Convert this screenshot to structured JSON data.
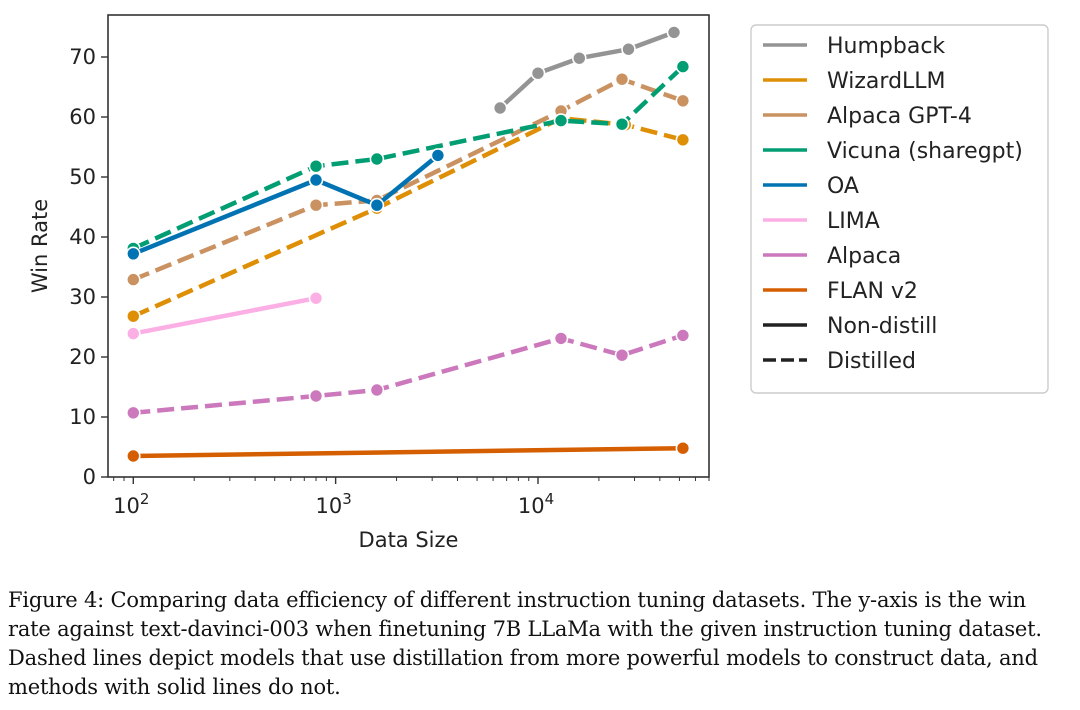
{
  "chart_data": {
    "type": "line",
    "xlabel": "Data Size",
    "ylabel": "Win Rate",
    "xscale": "log",
    "xlim": [
      75,
      70000
    ],
    "ylim": [
      0,
      77
    ],
    "x_ticks": [
      {
        "value": 100,
        "base": "10",
        "exp": "2"
      },
      {
        "value": 1000,
        "base": "10",
        "exp": "3"
      },
      {
        "value": 10000,
        "base": "10",
        "exp": "4"
      }
    ],
    "y_ticks": [
      0,
      10,
      20,
      30,
      40,
      50,
      60,
      70
    ],
    "grid": false,
    "legend_position": "outside-right",
    "series": [
      {
        "name": "Humpback",
        "color": "#949494",
        "style": "solid",
        "points": [
          {
            "x": 6500,
            "y": 61.5
          },
          {
            "x": 10000,
            "y": 67.3
          },
          {
            "x": 16000,
            "y": 69.8
          },
          {
            "x": 28000,
            "y": 71.3
          },
          {
            "x": 47000,
            "y": 74.1
          }
        ]
      },
      {
        "name": "WizardLLM",
        "color": "#de8f05",
        "style": "dashed",
        "points": [
          {
            "x": 100,
            "y": 26.8
          },
          {
            "x": 1600,
            "y": 44.8
          },
          {
            "x": 13000,
            "y": 59.8
          },
          {
            "x": 27000,
            "y": 58.7
          },
          {
            "x": 52000,
            "y": 56.2
          }
        ]
      },
      {
        "name": "Alpaca GPT-4",
        "color": "#ca9161",
        "style": "dashed",
        "points": [
          {
            "x": 100,
            "y": 32.9
          },
          {
            "x": 800,
            "y": 45.3
          },
          {
            "x": 1600,
            "y": 46.1
          },
          {
            "x": 13000,
            "y": 61.0
          },
          {
            "x": 26000,
            "y": 66.3
          },
          {
            "x": 52000,
            "y": 62.7
          }
        ]
      },
      {
        "name": "Vicuna (sharegpt)",
        "color": "#029e73",
        "style": "dashed",
        "points": [
          {
            "x": 100,
            "y": 38.1
          },
          {
            "x": 800,
            "y": 51.8
          },
          {
            "x": 1600,
            "y": 53.0
          },
          {
            "x": 13000,
            "y": 59.4
          },
          {
            "x": 26000,
            "y": 58.8
          },
          {
            "x": 52000,
            "y": 68.4
          }
        ]
      },
      {
        "name": "OA",
        "color": "#0173b2",
        "style": "solid",
        "points": [
          {
            "x": 100,
            "y": 37.2
          },
          {
            "x": 800,
            "y": 49.5
          },
          {
            "x": 1600,
            "y": 45.3
          },
          {
            "x": 3200,
            "y": 53.6
          }
        ]
      },
      {
        "name": "LIMA",
        "color": "#fbafe4",
        "style": "solid",
        "points": [
          {
            "x": 100,
            "y": 23.9
          },
          {
            "x": 800,
            "y": 29.8
          }
        ]
      },
      {
        "name": "Alpaca",
        "color": "#cc78bc",
        "style": "dashed",
        "points": [
          {
            "x": 100,
            "y": 10.7
          },
          {
            "x": 800,
            "y": 13.5
          },
          {
            "x": 1600,
            "y": 14.5
          },
          {
            "x": 13000,
            "y": 23.1
          },
          {
            "x": 26000,
            "y": 20.3
          },
          {
            "x": 52000,
            "y": 23.6
          }
        ]
      },
      {
        "name": "FLAN v2",
        "color": "#d55e00",
        "style": "solid",
        "points": [
          {
            "x": 100,
            "y": 3.5
          },
          {
            "x": 52000,
            "y": 4.8
          }
        ]
      }
    ],
    "legend_extra": [
      {
        "name": "Non-distill",
        "color": "#222222",
        "style": "solid"
      },
      {
        "name": "Distilled",
        "color": "#222222",
        "style": "dashed"
      }
    ]
  },
  "caption": "Figure 4: Comparing data efficiency of different instruction tuning datasets. The y-axis is the win rate against text-davinci-003 when finetuning 7B LLaMa with the given instruction tuning dataset. Dashed lines depict models that use distillation from more powerful models to construct data, and methods with solid lines do not."
}
